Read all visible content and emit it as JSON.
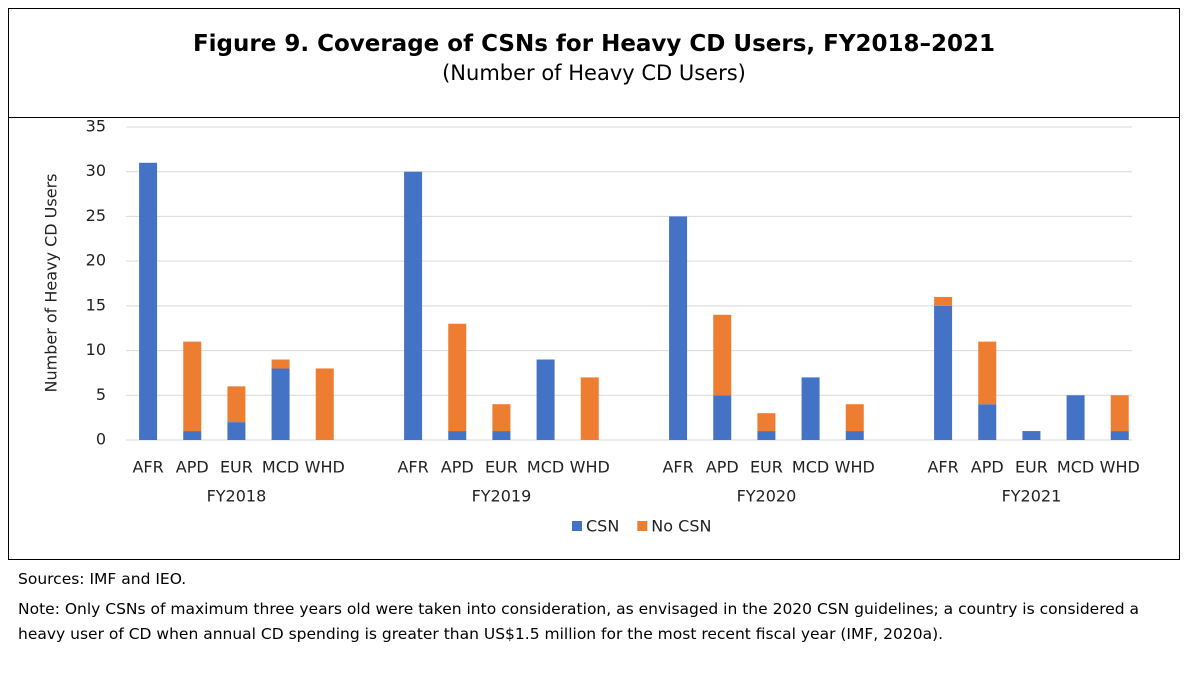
{
  "title": "Figure 9. Coverage of CSNs for Heavy CD Users, FY2018–2021",
  "subtitle": "(Number of Heavy CD Users)",
  "chart_data": {
    "type": "stacked-bar",
    "groups": [
      "FY2018",
      "FY2019",
      "FY2020",
      "FY2021"
    ],
    "categories": [
      "AFR",
      "APD",
      "EUR",
      "MCD",
      "WHD",
      "AFR",
      "APD",
      "EUR",
      "MCD",
      "WHD",
      "AFR",
      "APD",
      "EUR",
      "MCD",
      "WHD",
      "AFR",
      "APD",
      "EUR",
      "MCD",
      "WHD"
    ],
    "series": [
      {
        "name": "CSN",
        "color": "#4472c4",
        "values": [
          31,
          1,
          2,
          8,
          0,
          30,
          1,
          1,
          9,
          0,
          25,
          5,
          1,
          7,
          1,
          15,
          4,
          1,
          5,
          1
        ]
      },
      {
        "name": "No CSN",
        "color": "#ed7d31",
        "values": [
          0,
          10,
          4,
          1,
          8,
          0,
          12,
          3,
          0,
          7,
          0,
          9,
          2,
          0,
          3,
          1,
          7,
          0,
          0,
          4
        ]
      }
    ],
    "ylabel": "Number of Heavy CD Users",
    "ylim": [
      0,
      35
    ],
    "yticks": [
      0,
      5,
      10,
      15,
      20,
      25,
      30,
      35
    ],
    "grid": true,
    "legend": "bottom"
  },
  "sources": "Sources: IMF and IEO.",
  "note": "Note: Only CSNs of maximum three years old were taken into consideration, as envisaged in the 2020 CSN guidelines; a country is considered a heavy user of CD when annual CD spending is greater than US$1.5 million for the most recent fiscal year (IMF, 2020a)."
}
